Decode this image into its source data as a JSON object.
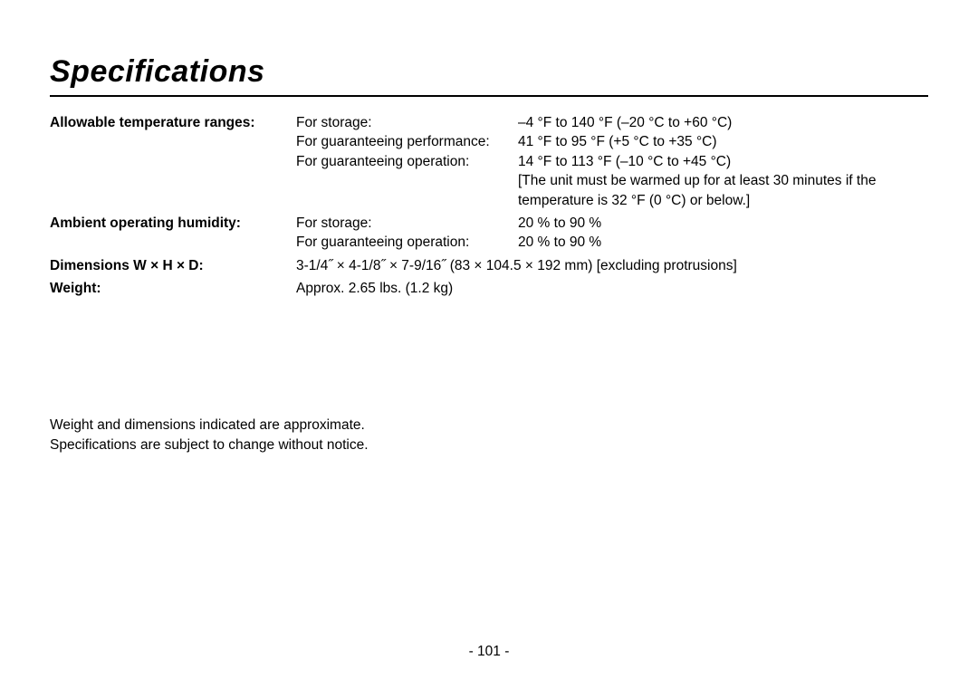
{
  "title": "Specifications",
  "specs": {
    "temp_label": "Allowable temperature ranges:",
    "temp_rows": [
      {
        "cond": "For storage:",
        "val": "–4 °F to 140 °F (–20 °C to +60 °C)"
      },
      {
        "cond": "For guaranteeing performance:",
        "val": "41 °F to 95 °F (+5 °C to +35 °C)"
      },
      {
        "cond": "For guaranteeing operation:",
        "val": "14 °F to 113 °F (–10 °C to +45 °C)"
      },
      {
        "cond": "",
        "val": "[The unit must be warmed up for at least 30 minutes if the"
      },
      {
        "cond": "",
        "val": "temperature is 32 °F (0 °C) or below.]"
      }
    ],
    "humidity_label": "Ambient operating humidity:",
    "humidity_rows": [
      {
        "cond": "For storage:",
        "val": "20 % to 90 %"
      },
      {
        "cond": "For guaranteeing operation:",
        "val": "20 % to 90 %"
      }
    ],
    "dimensions_label": "Dimensions W × H × D:",
    "dimensions_value": "3-1/4˝ × 4-1/8˝ × 7-9/16˝ (83 × 104.5 × 192 mm) [excluding protrusions]",
    "weight_label": "Weight:",
    "weight_value": "Approx. 2.65 lbs. (1.2 kg)"
  },
  "notes": {
    "line1": "Weight and dimensions indicated are approximate.",
    "line2": "Specifications are subject to change without notice."
  },
  "page_number": "- 101 -"
}
